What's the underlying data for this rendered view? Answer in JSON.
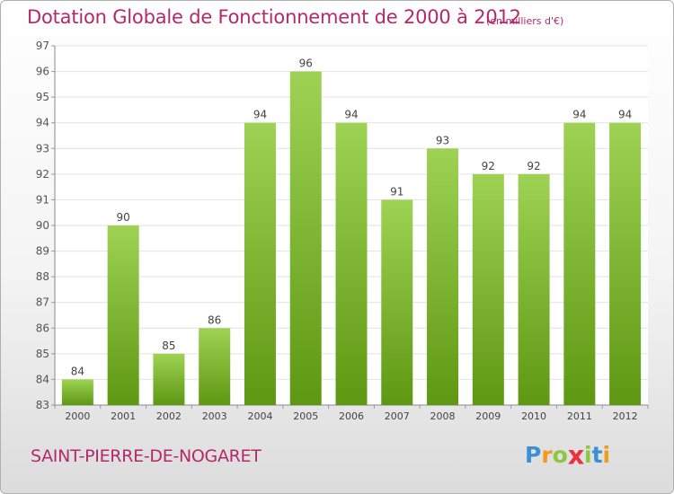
{
  "title": "Dotation Globale de Fonctionnement de 2000 à 2012",
  "subtitle": "(en milliers d'€)",
  "commune": "SAINT-PIERRE-DE-NOGARET",
  "logo": {
    "letters": [
      "P",
      "r",
      "o",
      "x",
      "i",
      "t",
      "i"
    ],
    "colors": [
      "#3a8fd6",
      "#f39a1d",
      "#8dc63f",
      "#e8333f",
      "#8dc63f",
      "#3a8fd6",
      "#f39a1d"
    ]
  },
  "colors": {
    "accent": "#b4296a",
    "bar_light": "#9ed254",
    "bar_dark": "#5e9812",
    "grid": "#e2e2e2"
  },
  "chart_data": {
    "type": "bar",
    "categories": [
      "2000",
      "2001",
      "2002",
      "2003",
      "2004",
      "2005",
      "2006",
      "2007",
      "2008",
      "2009",
      "2010",
      "2011",
      "2012"
    ],
    "values": [
      84,
      90,
      85,
      86,
      94,
      96,
      94,
      91,
      93,
      92,
      92,
      94,
      94
    ],
    "ylim": [
      83,
      97
    ],
    "yticks": [
      83,
      84,
      85,
      86,
      87,
      88,
      89,
      90,
      91,
      92,
      93,
      94,
      95,
      96,
      97
    ],
    "grid": true,
    "legend": "none"
  }
}
